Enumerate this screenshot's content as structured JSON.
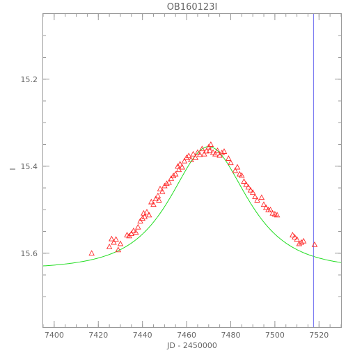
{
  "chart_data": {
    "type": "scatter",
    "title": "OB160123I",
    "xlabel": "JD - 2450000",
    "ylabel": "I",
    "xlim": [
      7395,
      7530
    ],
    "ylim": [
      15.77,
      15.05
    ],
    "y_inverted": true,
    "x_ticks": [
      7400,
      7420,
      7440,
      7460,
      7480,
      7500,
      7520
    ],
    "x_tick_labels": [
      "7400",
      "7420",
      "7440",
      "7460",
      "7480",
      "7500",
      "7520"
    ],
    "y_ticks": [
      15.2,
      15.4,
      15.6
    ],
    "y_tick_labels": [
      "15.2",
      "15.4",
      "15.6"
    ],
    "grid": false,
    "vertical_line": {
      "x": 7517.5,
      "color": "#6a6af0"
    },
    "model": {
      "name": "",
      "color": "#22dd22",
      "t0": 7470.0,
      "base_mag": 15.637,
      "peak_mag": 15.355,
      "tE": 22.0,
      "u0": 0.9
    },
    "series": [
      {
        "marker": "triangle",
        "color": "#ff2a2a",
        "x": [
          7417,
          7425,
          7426,
          7427,
          7428,
          7429,
          7430,
          7433,
          7434,
          7435,
          7436,
          7437,
          7438,
          7439,
          7440,
          7440.5,
          7441,
          7442,
          7443,
          7444,
          7445,
          7446,
          7447,
          7447.5,
          7448,
          7449,
          7450,
          7451,
          7452,
          7453,
          7454,
          7455,
          7456,
          7456.5,
          7457,
          7458,
          7459,
          7460,
          7461,
          7462,
          7463,
          7464,
          7465,
          7466,
          7467,
          7468,
          7469,
          7470,
          7470.5,
          7471,
          7472,
          7473,
          7474,
          7475,
          7476,
          7477,
          7479,
          7480,
          7482,
          7483,
          7484,
          7485,
          7486,
          7487,
          7488,
          7489,
          7490,
          7491,
          7492,
          7494,
          7495,
          7496,
          7497,
          7498,
          7499,
          7500,
          7501,
          7508,
          7509,
          7510,
          7511,
          7512,
          7513,
          7518
        ],
        "y": [
          15.6,
          15.585,
          15.567,
          15.575,
          15.568,
          15.592,
          15.578,
          15.558,
          15.56,
          15.555,
          15.548,
          15.552,
          15.54,
          15.526,
          15.52,
          15.508,
          15.516,
          15.505,
          15.512,
          15.482,
          15.488,
          15.475,
          15.468,
          15.478,
          15.452,
          15.458,
          15.445,
          15.44,
          15.437,
          15.428,
          15.422,
          15.418,
          15.4,
          15.408,
          15.395,
          15.402,
          15.388,
          15.38,
          15.376,
          15.385,
          15.372,
          15.38,
          15.368,
          15.373,
          15.36,
          15.372,
          15.365,
          15.356,
          15.364,
          15.35,
          15.368,
          15.372,
          15.364,
          15.375,
          15.369,
          15.366,
          15.382,
          15.392,
          15.41,
          15.402,
          15.418,
          15.421,
          15.435,
          15.442,
          15.448,
          15.455,
          15.46,
          15.47,
          15.478,
          15.472,
          15.488,
          15.495,
          15.5,
          15.5,
          15.508,
          15.51,
          15.512,
          15.558,
          15.563,
          15.568,
          15.578,
          15.575,
          15.572,
          15.58
        ]
      }
    ]
  }
}
